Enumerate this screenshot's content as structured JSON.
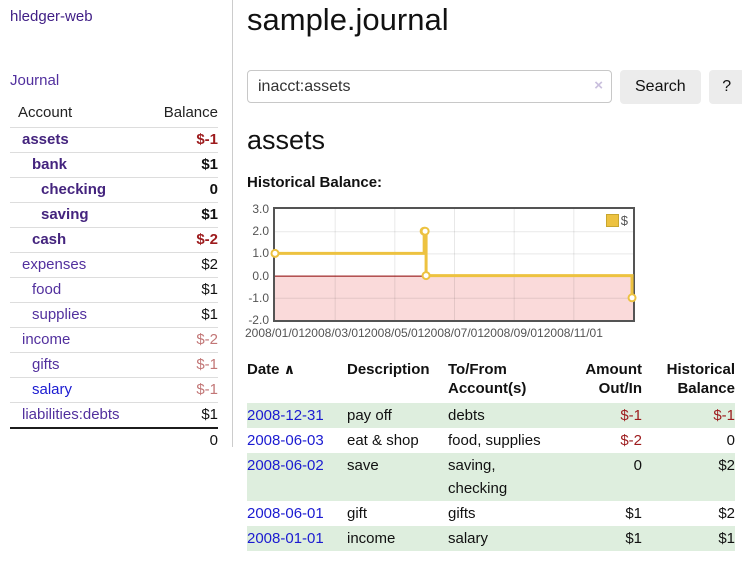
{
  "sidebar": {
    "app_title": "hledger-web",
    "nav_journal": "Journal",
    "accounts_table": {
      "header_account": "Account",
      "header_balance": "Balance",
      "rows": [
        {
          "account": "assets",
          "indent": 1,
          "bold": true,
          "link_color": "purple",
          "balance": "$-1",
          "balance_style": "neg-strong"
        },
        {
          "account": "bank",
          "indent": 2,
          "bold": true,
          "link_color": "purple",
          "balance": "$1",
          "balance_style": ""
        },
        {
          "account": "checking",
          "indent": 3,
          "bold": true,
          "link_color": "purple",
          "balance": "0",
          "balance_style": ""
        },
        {
          "account": "saving",
          "indent": 3,
          "bold": true,
          "link_color": "purple",
          "balance": "$1",
          "balance_style": ""
        },
        {
          "account": "cash",
          "indent": 2,
          "bold": true,
          "link_color": "purple",
          "balance": "$-2",
          "balance_style": "neg-strong"
        },
        {
          "account": "expenses",
          "indent": 1,
          "bold": false,
          "link_color": "purple",
          "balance": "$2",
          "balance_style": ""
        },
        {
          "account": "food",
          "indent": 2,
          "bold": false,
          "link_color": "purple",
          "balance": "$1",
          "balance_style": ""
        },
        {
          "account": "supplies",
          "indent": 2,
          "bold": false,
          "link_color": "purple",
          "balance": "$1",
          "balance_style": ""
        },
        {
          "account": "income",
          "indent": 1,
          "bold": false,
          "link_color": "purple",
          "balance": "$-2",
          "balance_style": "neg-soft"
        },
        {
          "account": "gifts",
          "indent": 2,
          "bold": false,
          "link_color": "purple",
          "balance": "$-1",
          "balance_style": "neg-soft"
        },
        {
          "account": "salary",
          "indent": 2,
          "bold": false,
          "link_color": "blue",
          "balance": "$-1",
          "balance_style": "neg-soft"
        },
        {
          "account": "liabilities:debts",
          "indent": 1,
          "bold": false,
          "link_color": "purple",
          "balance": "$1",
          "balance_style": ""
        }
      ],
      "total": "0"
    }
  },
  "main": {
    "title": "sample.journal",
    "search": {
      "value": "inacct:assets",
      "clear_icon": "×",
      "search_label": "Search",
      "help_label": "?"
    },
    "account_heading": "assets",
    "chart_heading": "Historical Balance:",
    "transactions": {
      "headers": {
        "date": "Date",
        "sort_indicator": "∧",
        "description": "Description",
        "tofrom": "To/From Account(s)",
        "amount": "Amount Out/In",
        "balance": "Historical Balance"
      },
      "rows": [
        {
          "date": "2008-12-31",
          "description": "pay off",
          "accounts": "debts",
          "amount": "$-1",
          "amount_style": "neg-strong",
          "balance": "$-1",
          "balance_style": "neg-strong",
          "shade": "green"
        },
        {
          "date": "2008-06-03",
          "description": "eat & shop",
          "accounts": "food, supplies",
          "amount": "$-2",
          "amount_style": "neg-strong",
          "balance": "0",
          "balance_style": "",
          "shade": "white"
        },
        {
          "date": "2008-06-02",
          "description": "save",
          "accounts": "saving,\nchecking",
          "amount": "0",
          "amount_style": "",
          "balance": "$2",
          "balance_style": "",
          "shade": "green"
        },
        {
          "date": "2008-06-01",
          "description": "gift",
          "accounts": "gifts",
          "amount": "$1",
          "amount_style": "",
          "balance": "$2",
          "balance_style": "",
          "shade": "white"
        },
        {
          "date": "2008-01-01",
          "description": "income",
          "accounts": "salary",
          "amount": "$1",
          "amount_style": "",
          "balance": "$1",
          "balance_style": "",
          "shade": "green"
        }
      ]
    }
  },
  "chart_data": {
    "type": "line",
    "style": "steps",
    "title": "Historical Balance",
    "series": [
      {
        "name": "$",
        "color": "#edc240",
        "points": [
          [
            "2008-01-01",
            1
          ],
          [
            "2008-06-01",
            2
          ],
          [
            "2008-06-02",
            2
          ],
          [
            "2008-06-03",
            0
          ],
          [
            "2008-12-31",
            -1
          ]
        ]
      }
    ],
    "x_ticks": [
      "2008/01/01",
      "2008/03/01",
      "2008/05/01",
      "2008/07/01",
      "2008/09/01",
      "2008/11/01"
    ],
    "x_tick_months": [
      0,
      2,
      4,
      6,
      8,
      10
    ],
    "xlim_months": [
      0,
      12
    ],
    "y_ticks": [
      "3.0",
      "2.0",
      "1.0",
      "0.0",
      "-1.0",
      "-2.0"
    ],
    "ylim": [
      -2,
      3
    ],
    "grid": true,
    "legend_position": "top-right",
    "legend_label": "$",
    "zero_line_color": "#8b0000",
    "negative_region_color": "#fadada"
  },
  "colors": {
    "link_purple": "#52309e",
    "link_purple_bold": "#44247e",
    "link_blue": "#1b1bd1",
    "negative_strong": "#9d1b1d",
    "negative_soft": "#c27676",
    "row_green": "#deeede",
    "chart_line_gold": "#edc240",
    "chart_negative_pink": "#fadada",
    "chart_zero_line": "#8b0000",
    "chart_border": "#545454",
    "button_bg": "#ececec"
  }
}
